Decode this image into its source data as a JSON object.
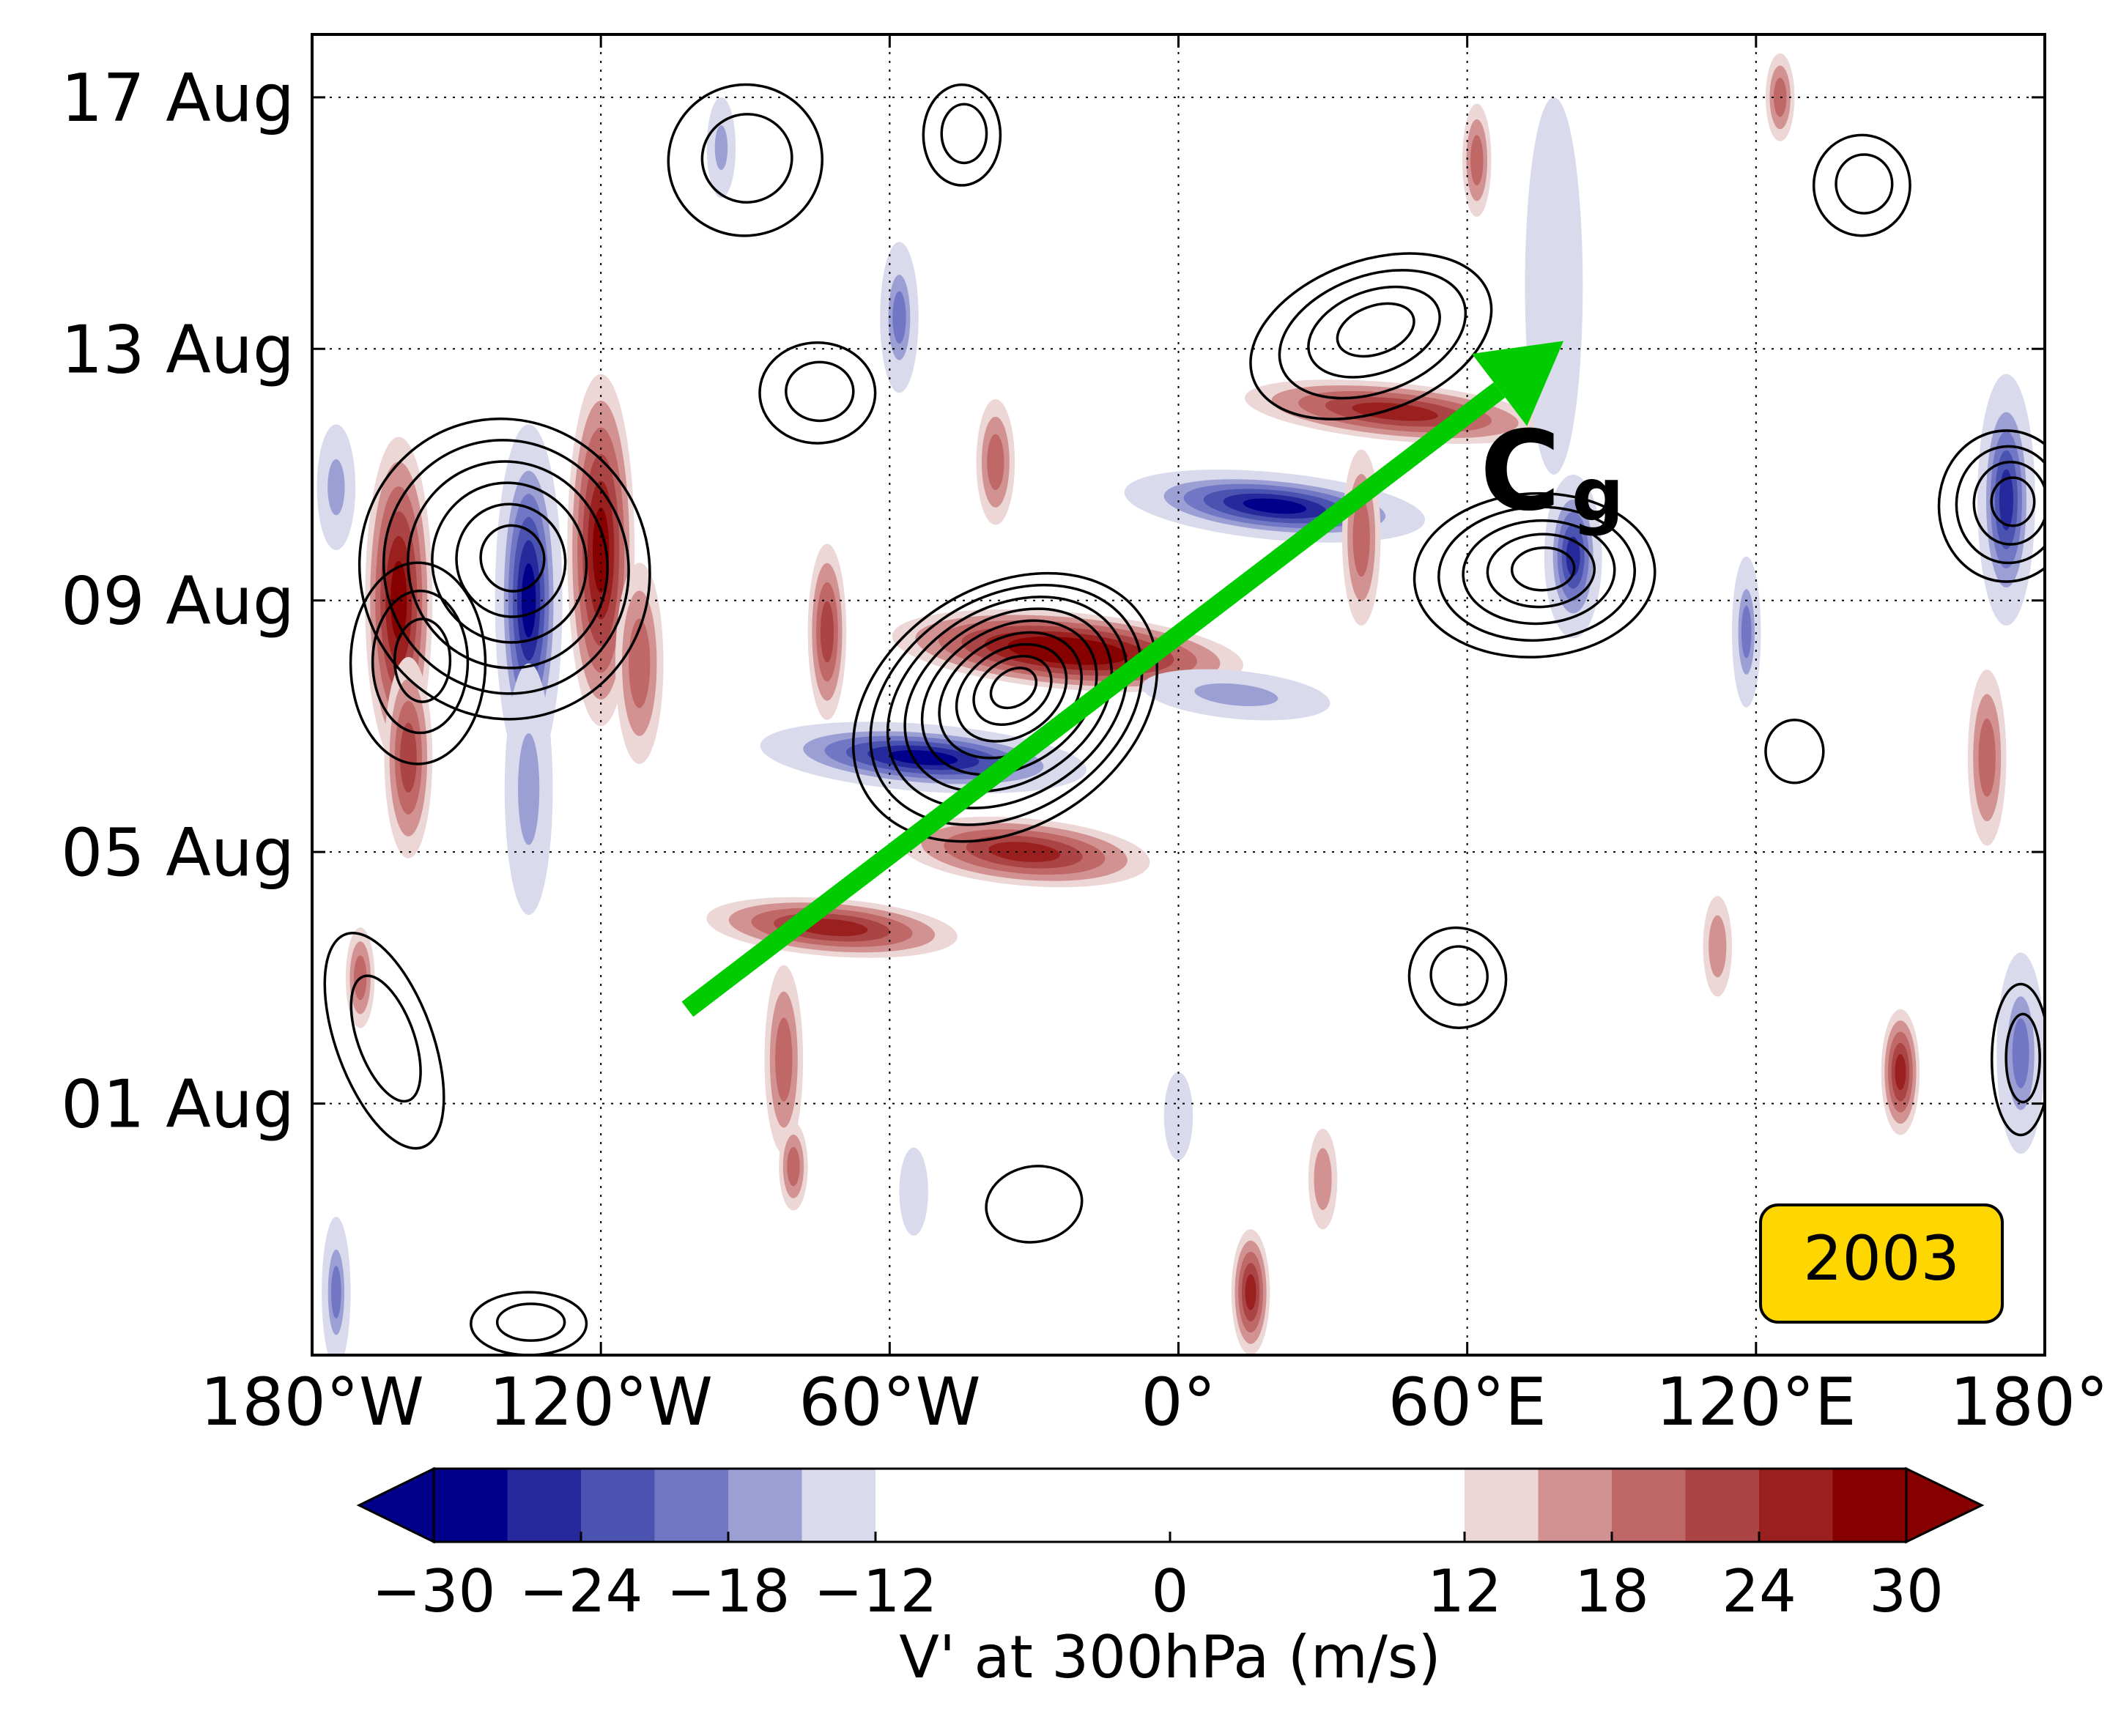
{
  "chart_data": {
    "type": "heatmap",
    "title": "",
    "ylabel": "",
    "xlabel": "",
    "x_axis": {
      "range": [
        -180,
        180
      ],
      "ticks": [
        -180,
        -120,
        -60,
        0,
        60,
        120,
        180
      ],
      "tick_labels": [
        "180°W",
        "120°W",
        "60°W",
        "0°",
        "60°E",
        "120°E",
        "180°"
      ]
    },
    "y_axis": {
      "ticks": [
        "2003-08-01",
        "2003-08-05",
        "2003-08-09",
        "2003-08-13",
        "2003-08-17"
      ],
      "tick_labels": [
        "01 Aug",
        "05 Aug",
        "09 Aug",
        "13 Aug",
        "17 Aug"
      ],
      "range": [
        "2003-07-28",
        "2003-08-18"
      ]
    },
    "grid": true,
    "year_badge": "2003",
    "arrow": {
      "label": "C",
      "subscript": "g",
      "color": "#00cc00",
      "start": {
        "lon": -102,
        "date": "2003-08-02T12:00"
      },
      "end": {
        "lon": 80,
        "date": "2003-08-13T03:00"
      }
    },
    "colorbar": {
      "label": "V' at 300hPa (m/s)",
      "levels": [
        -30,
        -27,
        -24,
        -21,
        -18,
        -15,
        -12,
        12,
        15,
        18,
        21,
        24,
        27,
        30
      ],
      "tick_values": [
        -30,
        -24,
        -18,
        -12,
        0,
        12,
        18,
        24,
        30
      ],
      "tick_labels": [
        "−30",
        "−24",
        "−18",
        "−12",
        "0",
        "12",
        "18",
        "24",
        "30"
      ],
      "colors_negative": [
        "#00008b",
        "#26299b",
        "#4a53b0",
        "#7177c4",
        "#9b9fd4",
        "#d9daec"
      ],
      "colors_positive": [
        "#ecd6d6",
        "#d29292",
        "#c06868",
        "#ab4444",
        "#9a2020",
        "#860000"
      ]
    },
    "anomalies": [
      {
        "lon": -162,
        "days": 12.0,
        "hw": 7,
        "hh": 2.6,
        "shear": 0.0,
        "value": 28
      },
      {
        "lon": -160,
        "days": 9.5,
        "hw": 5,
        "hh": 1.6,
        "shear": 0.0,
        "value": 22
      },
      {
        "lon": -135,
        "days": 12.0,
        "hw": 7,
        "hh": 2.8,
        "shear": 0.0,
        "value": -30
      },
      {
        "lon": -135,
        "days": 9.0,
        "hw": 5,
        "hh": 2.0,
        "shear": 0.0,
        "value": -18
      },
      {
        "lon": -120,
        "days": 12.8,
        "hw": 7,
        "hh": 2.8,
        "shear": 0.0,
        "value": 28
      },
      {
        "lon": -112,
        "days": 11.0,
        "hw": 5,
        "hh": 1.6,
        "shear": 0.0,
        "value": 20
      },
      {
        "lon": -73,
        "days": 11.5,
        "hw": 4,
        "hh": 1.4,
        "shear": 0.0,
        "value": 22
      },
      {
        "lon": -58,
        "days": 16.5,
        "hw": 4,
        "hh": 1.2,
        "shear": 0.0,
        "value": -22
      },
      {
        "lon": -95,
        "days": 19.2,
        "hw": 3,
        "hh": 0.8,
        "shear": 0.0,
        "value": -18
      },
      {
        "lon": -53,
        "days": 9.5,
        "hw": 7,
        "hh": 2.6,
        "shear": 0.25,
        "value": -30
      },
      {
        "lon": -72,
        "days": 6.8,
        "hw": 6,
        "hh": 2.0,
        "shear": 0.25,
        "value": 24
      },
      {
        "lon": -82,
        "days": 4.7,
        "hw": 4,
        "hh": 1.5,
        "shear": 0.0,
        "value": 18
      },
      {
        "lon": -23,
        "days": 11.2,
        "hw": 8,
        "hh": 2.8,
        "shear": 0.22,
        "value": 30
      },
      {
        "lon": -32,
        "days": 8.0,
        "hw": 7,
        "hh": 2.0,
        "shear": 0.22,
        "value": 26
      },
      {
        "lon": -38,
        "days": 14.2,
        "hw": 4,
        "hh": 1.0,
        "shear": 0.0,
        "value": 20
      },
      {
        "lon": 20,
        "days": 13.5,
        "hw": 7,
        "hh": 2.4,
        "shear": 0.2,
        "value": -30
      },
      {
        "lon": 12,
        "days": 10.5,
        "hw": 5,
        "hh": 1.5,
        "shear": 0.2,
        "value": -20
      },
      {
        "lon": 45,
        "days": 15.0,
        "hw": 6,
        "hh": 2.4,
        "shear": 0.2,
        "value": 26
      },
      {
        "lon": 38,
        "days": 13.0,
        "hw": 4,
        "hh": 1.4,
        "shear": 0.0,
        "value": 18
      },
      {
        "lon": 78,
        "days": 17.0,
        "hw": 6,
        "hh": 3.0,
        "shear": 0.0,
        "value": -16
      },
      {
        "lon": 82,
        "days": 12.7,
        "hw": 6,
        "hh": 1.3,
        "shear": 0.0,
        "value": -28
      },
      {
        "lon": 62,
        "days": 19.0,
        "hw": 3,
        "hh": 0.9,
        "shear": 0.0,
        "value": 20
      },
      {
        "lon": 118,
        "days": 11.5,
        "hw": 3,
        "hh": 1.2,
        "shear": 0.0,
        "value": -22
      },
      {
        "lon": 172,
        "days": 13.6,
        "hw": 6,
        "hh": 2.0,
        "shear": 0.0,
        "value": -28
      },
      {
        "lon": 168,
        "days": 9.5,
        "hw": 4,
        "hh": 1.4,
        "shear": 0.0,
        "value": 18
      },
      {
        "lon": 150,
        "days": 4.5,
        "hw": 4,
        "hh": 1.0,
        "shear": 0.0,
        "value": 24
      },
      {
        "lon": 175,
        "days": 4.8,
        "hw": 5,
        "hh": 1.6,
        "shear": 0.0,
        "value": -22
      },
      {
        "lon": 15,
        "days": 1.0,
        "hw": 4,
        "hh": 1.0,
        "shear": 0.0,
        "value": 26
      },
      {
        "lon": -175,
        "days": 1.0,
        "hw": 3,
        "hh": 1.2,
        "shear": 0.0,
        "value": -22
      },
      {
        "lon": -170,
        "days": 6.0,
        "hw": 3,
        "hh": 0.8,
        "shear": 0.0,
        "value": 18
      },
      {
        "lon": -175,
        "days": 13.8,
        "hw": 4,
        "hh": 1.0,
        "shear": 0.0,
        "value": -18
      },
      {
        "lon": -80,
        "days": 3.0,
        "hw": 3,
        "hh": 0.7,
        "shear": 0.0,
        "value": 18
      },
      {
        "lon": -55,
        "days": 2.6,
        "hw": 3,
        "hh": 0.7,
        "shear": 0.0,
        "value": -14
      },
      {
        "lon": 0,
        "days": 3.8,
        "hw": 3,
        "hh": 0.7,
        "shear": 0.0,
        "value": -16
      },
      {
        "lon": 30,
        "days": 2.8,
        "hw": 3,
        "hh": 0.8,
        "shear": 0.0,
        "value": 16
      },
      {
        "lon": 112,
        "days": 6.5,
        "hw": 3,
        "hh": 0.8,
        "shear": 0.0,
        "value": 16
      },
      {
        "lon": 125,
        "days": 20.0,
        "hw": 3,
        "hh": 0.7,
        "shear": 0.0,
        "value": 18
      }
    ],
    "contours": [
      {
        "lon": -36,
        "days": 10.3,
        "hw": 34,
        "hh": 1.9,
        "angle": -33,
        "rings": 9
      },
      {
        "lon": -140,
        "days": 12.5,
        "hw": 30,
        "hh": 2.4,
        "angle": -20,
        "rings": 6
      },
      {
        "lon": -158,
        "days": 11.0,
        "hw": 14,
        "hh": 1.6,
        "angle": 0,
        "rings": 3
      },
      {
        "lon": 74,
        "days": 12.4,
        "hw": 25,
        "hh": 1.3,
        "angle": -3,
        "rings": 5
      },
      {
        "lon": 40,
        "days": 16.2,
        "hw": 26,
        "hh": 1.2,
        "angle": -20,
        "rings": 4
      },
      {
        "lon": 172,
        "days": 13.5,
        "hw": 14,
        "hh": 1.2,
        "angle": 0,
        "rings": 4
      },
      {
        "lon": -90,
        "days": 19.0,
        "hw": 16,
        "hh": 1.2,
        "angle": -15,
        "rings": 2
      },
      {
        "lon": -75,
        "days": 15.3,
        "hw": 12,
        "hh": 0.8,
        "angle": 0,
        "rings": 2
      },
      {
        "lon": -45,
        "days": 19.4,
        "hw": 8,
        "hh": 0.8,
        "angle": 0,
        "rings": 2
      },
      {
        "lon": -165,
        "days": 5.0,
        "hw": 10,
        "hh": 1.8,
        "angle": -20,
        "rings": 2
      },
      {
        "lon": 58,
        "days": 6.0,
        "hw": 10,
        "hh": 0.8,
        "angle": -20,
        "rings": 2
      },
      {
        "lon": -30,
        "days": 2.4,
        "hw": 10,
        "hh": 0.6,
        "angle": -10,
        "rings": 1
      },
      {
        "lon": 128,
        "days": 9.6,
        "hw": 6,
        "hh": 0.5,
        "angle": 0,
        "rings": 1
      },
      {
        "lon": 175,
        "days": 4.7,
        "hw": 6,
        "hh": 1.2,
        "angle": 0,
        "rings": 2
      },
      {
        "lon": 142,
        "days": 18.6,
        "hw": 10,
        "hh": 0.8,
        "angle": 0,
        "rings": 2
      },
      {
        "lon": -135,
        "days": 0.5,
        "hw": 12,
        "hh": 0.5,
        "angle": 0,
        "rings": 2
      }
    ]
  }
}
